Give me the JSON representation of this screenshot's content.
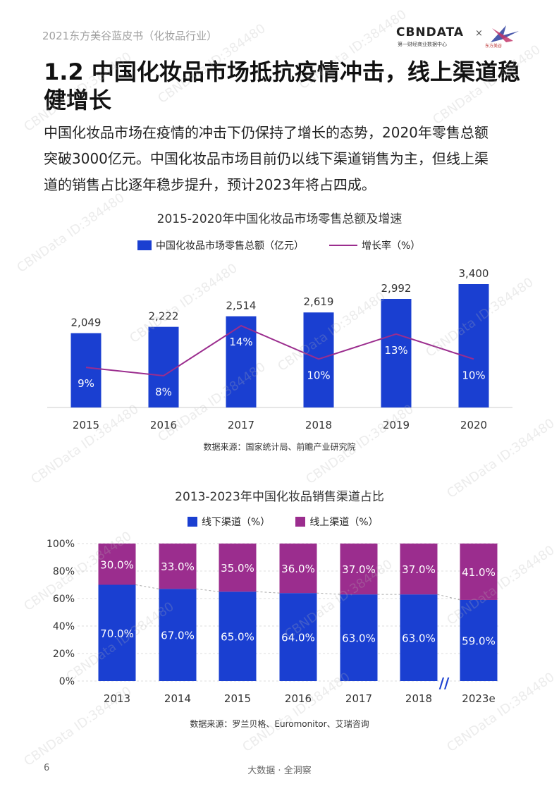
{
  "header": {
    "report_title": "2021东方美谷蓝皮书（化妆品行业）",
    "logo_main": "CBNDATA",
    "logo_sub": "第一财经商业数据中心",
    "logo_cross": "×",
    "partner_text": "东方美谷"
  },
  "section": {
    "title_line1": "1.2 中国化妆品市场抵抗疫情冲击，线上渠道稳",
    "title_line2": "健增长",
    "body_line1": "中国化妆品市场在疫情的冲击下仍保持了增长的态势，2020年零售总额",
    "body_line2": "突破3000亿元。中国化妆品市场目前仍以线下渠道销售为主，但线上渠",
    "body_line3": "道的销售占比逐年稳步提升，预计2023年将占四成。"
  },
  "watermark": "CBNData ID:384480",
  "chart_data": [
    {
      "type": "bar",
      "title": "2015-2020年中国化妆品市场零售总额及增速",
      "categories": [
        "2015",
        "2016",
        "2017",
        "2018",
        "2019",
        "2020"
      ],
      "bar_labels": [
        "2,049",
        "2,222",
        "2,514",
        "2,619",
        "2,992",
        "3,400"
      ],
      "line_labels": [
        "9%",
        "8%",
        "14%",
        "10%",
        "13%",
        "10%"
      ],
      "series": [
        {
          "name": "中国化妆品市场零售总额（亿元）",
          "type": "bar",
          "color": "#1a3fd1",
          "values": [
            2049,
            2222,
            2514,
            2619,
            2992,
            3400
          ]
        },
        {
          "name": "增长率（%）",
          "type": "line",
          "color": "#9b2d8e",
          "values": [
            9,
            8,
            14,
            10,
            13,
            10
          ]
        }
      ],
      "legend": "top",
      "source": "数据来源：国家统计局、前瞻产业研究院"
    },
    {
      "type": "bar",
      "stacked": true,
      "title": "2013-2023年中国化妆品销售渠道占比",
      "categories": [
        "2013",
        "2014",
        "2015",
        "2016",
        "2017",
        "2018",
        "2023e"
      ],
      "yticks": [
        "0%",
        "20%",
        "40%",
        "60%",
        "80%",
        "100%"
      ],
      "ylim": [
        0,
        100
      ],
      "offline_labels": [
        "70.0%",
        "67.0%",
        "65.0%",
        "64.0%",
        "63.0%",
        "63.0%",
        "59.0%"
      ],
      "online_labels": [
        "30.0%",
        "33.0%",
        "35.0%",
        "36.0%",
        "37.0%",
        "37.0%",
        "41.0%"
      ],
      "series": [
        {
          "name": "线下渠道（%）",
          "color": "#1a3fd1",
          "values": [
            70,
            67,
            65,
            64,
            63,
            63,
            59
          ]
        },
        {
          "name": "线上渠道（%）",
          "color": "#9b2d8e",
          "values": [
            30,
            33,
            35,
            36,
            37,
            37,
            41
          ]
        }
      ],
      "axis_break_mark": "//",
      "legend": "top",
      "source": "数据来源：罗兰贝格、Euromonitor、艾瑞咨询"
    }
  ],
  "footer": {
    "page_number": "6",
    "slogan": "大数据 · 全洞察"
  }
}
